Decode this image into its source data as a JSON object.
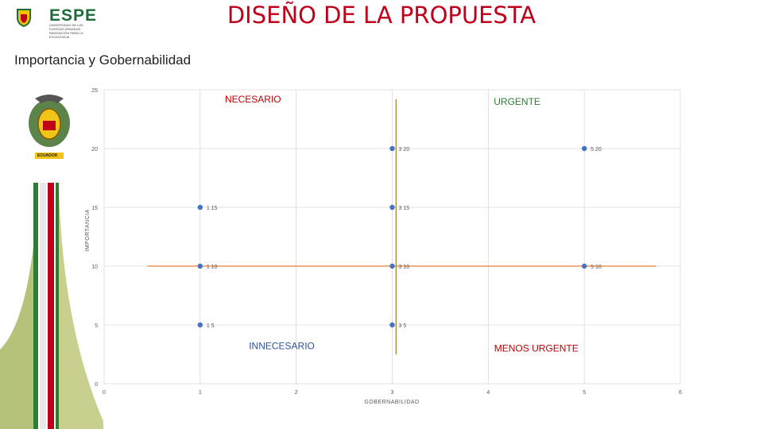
{
  "header": {
    "logo_text": "ESPE",
    "logo_subtext": "UNIVERSIDAD DE LAS FUERZAS ARMADAS INNOVACIÓN PARA LA EXCELENCIA",
    "title": "DISEÑO DE LA PROPUESTA",
    "subtitle": "Importancia y Gobernabilidad"
  },
  "emblem": {
    "banner_text": "ECUADOR",
    "icon": "ecuador-coat-of-arms-icon"
  },
  "colors": {
    "title": "#c0001a",
    "points": "#4472c4",
    "h_line": "#ed7d31",
    "v_line": "#9b8c3a",
    "necesario": "#c00000",
    "urgente": "#2e7d32",
    "innecesario": "#2f5597",
    "menos_urgente": "#c00000",
    "grid": "#d9d9d9"
  },
  "chart_data": {
    "type": "scatter",
    "xlabel": "GOBERNABILIDAD",
    "ylabel": "IMPORTANCIA",
    "xlim": [
      0,
      6
    ],
    "ylim": [
      0,
      25
    ],
    "xticks": [
      "0",
      "1",
      "2",
      "3",
      "4",
      "5",
      "6"
    ],
    "yticks": [
      "0",
      "5",
      "10",
      "15",
      "20",
      "25"
    ],
    "grid": true,
    "points": [
      {
        "x": 3,
        "y": 20,
        "label": "3 20"
      },
      {
        "x": 5,
        "y": 20,
        "label": "5 20"
      },
      {
        "x": 1,
        "y": 15,
        "label": "1 15"
      },
      {
        "x": 3,
        "y": 15,
        "label": "3 15"
      },
      {
        "x": 1,
        "y": 10,
        "label": "1 10"
      },
      {
        "x": 3,
        "y": 10,
        "label": "3 10"
      },
      {
        "x": 5,
        "y": 10,
        "label": "5 10"
      },
      {
        "x": 1,
        "y": 5,
        "label": "1 5"
      },
      {
        "x": 3,
        "y": 5,
        "label": "3 5"
      }
    ],
    "reference_lines": [
      {
        "orientation": "horizontal",
        "y": 10,
        "x_from": 0.45,
        "x_to": 5.75
      },
      {
        "orientation": "vertical",
        "x": 3.04,
        "y_from": 2.5,
        "y_to": 24.2
      }
    ],
    "quadrant_labels": [
      {
        "text": "NECESARIO",
        "x": 1.55,
        "y": 24.2,
        "color_key": "necesario"
      },
      {
        "text": "URGENTE",
        "x": 4.3,
        "y": 24.0,
        "color_key": "urgente"
      },
      {
        "text": "INNECESARIO",
        "x": 1.85,
        "y": 3.2,
        "color_key": "innecesario"
      },
      {
        "text": "MENOS URGENTE",
        "x": 4.5,
        "y": 3.0,
        "color_key": "menos_urgente"
      }
    ]
  }
}
